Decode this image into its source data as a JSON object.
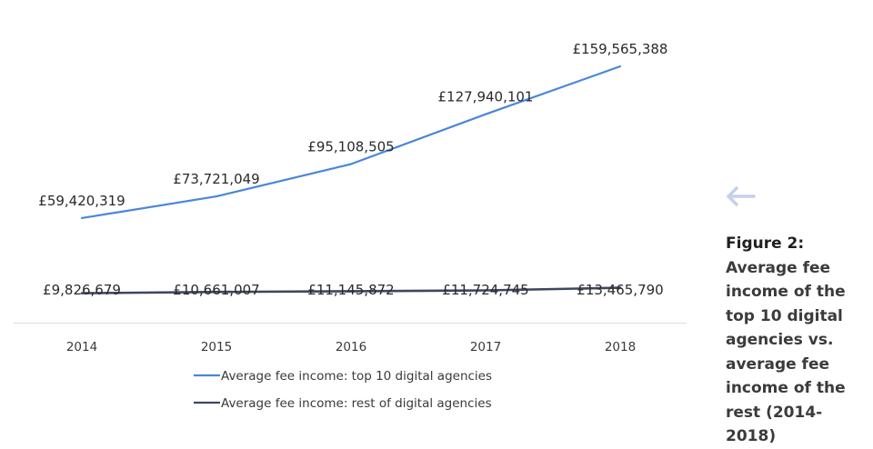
{
  "chart_data": {
    "type": "line",
    "categories": [
      "2014",
      "2015",
      "2016",
      "2017",
      "2018"
    ],
    "series": [
      {
        "name": "Average fee income: top 10 digital agencies",
        "values": [
          59420319,
          73721049,
          95108505,
          127940101,
          159565388
        ],
        "labels": [
          "£59,420,319",
          "£73,721,049",
          "£95,108,505",
          "£127,940,101",
          "£159,565,388"
        ],
        "color": "#4a86d8"
      },
      {
        "name": "Average fee income: rest of digital agencies",
        "values": [
          9826679,
          10661007,
          11145872,
          11724745,
          13465790
        ],
        "labels": [
          "£9,826,679",
          "£10,661,007",
          "£11,145,872",
          "£11,724,745",
          "£13,465,790"
        ],
        "color": "#3f4660"
      }
    ],
    "legend_position": "bottom",
    "grid": false
  },
  "caption": {
    "figure": "Figure 2:",
    "text": "Average fee income of the top 10 digital agencies vs. average fee income of the rest (2014-2018)"
  },
  "nav": {
    "back_icon": "arrow-left-icon",
    "icon_color": "#c5d0ea"
  }
}
